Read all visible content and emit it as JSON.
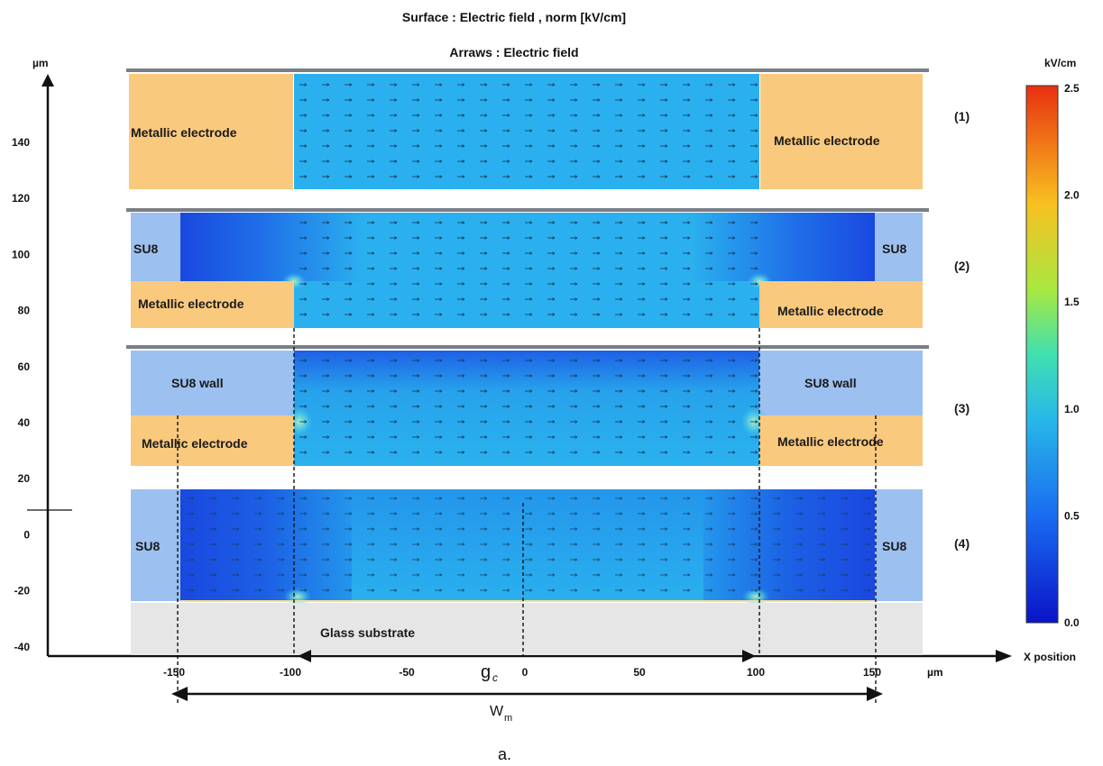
{
  "title": "Surface : Electric field , norm [kV/cm]",
  "subtitle": "Arraws : Electric field",
  "y_axis": {
    "unit": "µm",
    "ticks": [
      "140",
      "120",
      "100",
      "80",
      "60",
      "40",
      "20",
      "0",
      "-20",
      "-40"
    ]
  },
  "x_axis": {
    "label": "X position",
    "unit": "µm",
    "ticks": [
      "-150",
      "-100",
      "-50",
      "0",
      "50",
      "100",
      "150"
    ]
  },
  "colorbar": {
    "unit": "kV/cm",
    "ticks": [
      "2.5",
      "2.0",
      "1.5",
      "1.0",
      "0.5",
      "0.0"
    ]
  },
  "panels": [
    {
      "id": "(1)",
      "left_label": "Metallic electrode",
      "right_label": "Metallic electrode"
    },
    {
      "id": "(2)",
      "left_top_label": "SU8",
      "right_top_label": "SU8",
      "left_label": "Metallic electrode",
      "right_label": "Metallic electrode"
    },
    {
      "id": "(3)",
      "left_top_label": "SU8 wall",
      "right_top_label": "SU8 wall",
      "left_label": "Metallic electrode",
      "right_label": "Metallic electrode"
    },
    {
      "id": "(4)",
      "left_label": "SU8",
      "right_label": "SU8",
      "substrate_label": "Glass substrate"
    }
  ],
  "dimensions": {
    "gap_label": "g",
    "gap_subscript": "c",
    "width_label": "W",
    "width_subscript": "m"
  },
  "caption": "a.",
  "colors": {
    "electrode": "#f9c97e",
    "su8": "#9cc0f0",
    "field_mid": "#2ab0ee",
    "field_low": "#1a4fe0",
    "glass": "#e6e6e6",
    "top_line": "#7a7f86"
  }
}
